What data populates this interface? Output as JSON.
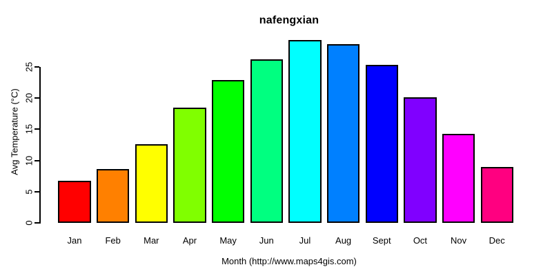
{
  "title": "nafengxian",
  "chart_data": {
    "type": "bar",
    "title": "nafengxian",
    "xlabel": "Month (http://www.maps4gis.com)",
    "ylabel": "Avg Temperature (°C)",
    "categories": [
      "Jan",
      "Feb",
      "Mar",
      "Apr",
      "May",
      "Jun",
      "Jul",
      "Aug",
      "Sept",
      "Oct",
      "Nov",
      "Dec"
    ],
    "values": [
      6.7,
      8.6,
      12.6,
      18.4,
      22.9,
      26.2,
      29.3,
      28.6,
      25.3,
      20.1,
      14.2,
      9.0
    ],
    "bar_colors": [
      "#FF0000",
      "#FF8000",
      "#FFFF00",
      "#80FF00",
      "#00FF00",
      "#00FF80",
      "#00FFFF",
      "#0080FF",
      "#0000FF",
      "#8000FF",
      "#FF00FF",
      "#FF0080"
    ],
    "bar_outline_color": "#000000",
    "yticks": [
      0,
      5,
      10,
      15,
      20,
      25
    ],
    "ylim": [
      0,
      29.5
    ],
    "grid": false,
    "legend": "none",
    "background_color": "#FFFFFF"
  }
}
